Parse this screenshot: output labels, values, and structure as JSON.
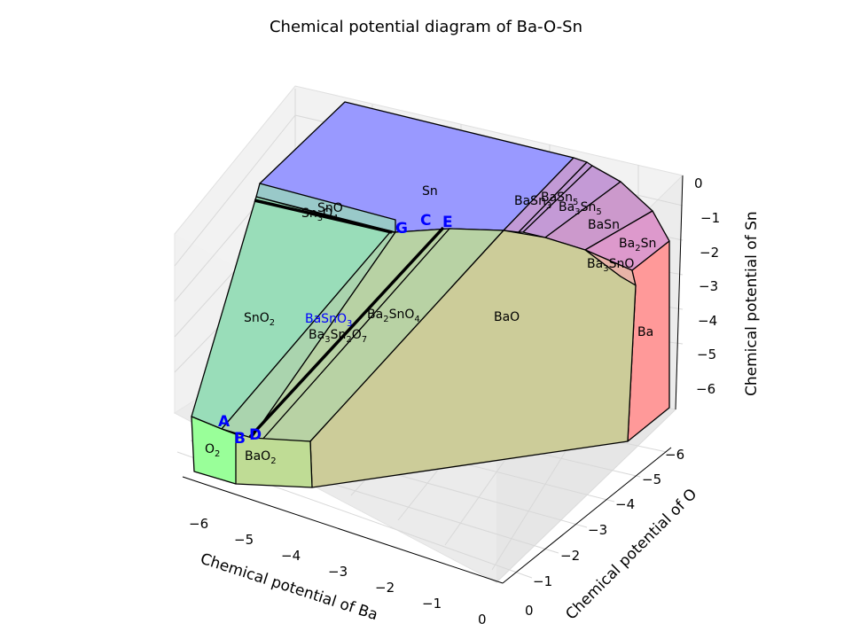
{
  "chart_data": {
    "type": "3d-polyhedron",
    "title": "Chemical potential diagram of Ba-O-Sn",
    "xlabel": "Chemical potential of Ba",
    "ylabel": "Chemical potential of O",
    "zlabel": "Chemical potential of Sn",
    "x_ticks": [
      "−6",
      "−5",
      "−4",
      "−3",
      "−2",
      "−1",
      "0"
    ],
    "y_ticks": [
      "−6",
      "−5",
      "−4",
      "−3",
      "−2",
      "−1",
      "0"
    ],
    "z_ticks": [
      "0",
      "−1",
      "−2",
      "−3",
      "−4",
      "−5",
      "−6"
    ],
    "grid": true,
    "regions": [
      {
        "name": "Sn",
        "color": "#9999ff"
      },
      {
        "name": "SnO",
        "color": "#99c9c9"
      },
      {
        "name": "Sn3O4",
        "color": "#99c9c9"
      },
      {
        "name": "SnO2",
        "color": "#99ddb9"
      },
      {
        "name": "BaSnO3",
        "color": "#aad4ae",
        "highlight": true
      },
      {
        "name": "Ba3Sn2O7",
        "color": "#b8d2a4"
      },
      {
        "name": "Ba2SnO4",
        "color": "#b8d2a4"
      },
      {
        "name": "BaO",
        "color": "#cccc99"
      },
      {
        "name": "BaO2",
        "color": "#bfdc95"
      },
      {
        "name": "O2",
        "color": "#99ff99"
      },
      {
        "name": "Ba",
        "color": "#ff9999"
      },
      {
        "name": "Ba3SnO",
        "color": "#e8b4a8"
      },
      {
        "name": "Ba2Sn",
        "color": "#dd99cc"
      },
      {
        "name": "BaSn",
        "color": "#cc99cc"
      },
      {
        "name": "Ba3Sn5",
        "color": "#c49ad6"
      },
      {
        "name": "BaSn3",
        "color": "#c29ad6"
      },
      {
        "name": "BaSn5",
        "color": "#c29ad6"
      }
    ],
    "points": [
      "A",
      "B",
      "C",
      "D",
      "E",
      "G"
    ]
  }
}
